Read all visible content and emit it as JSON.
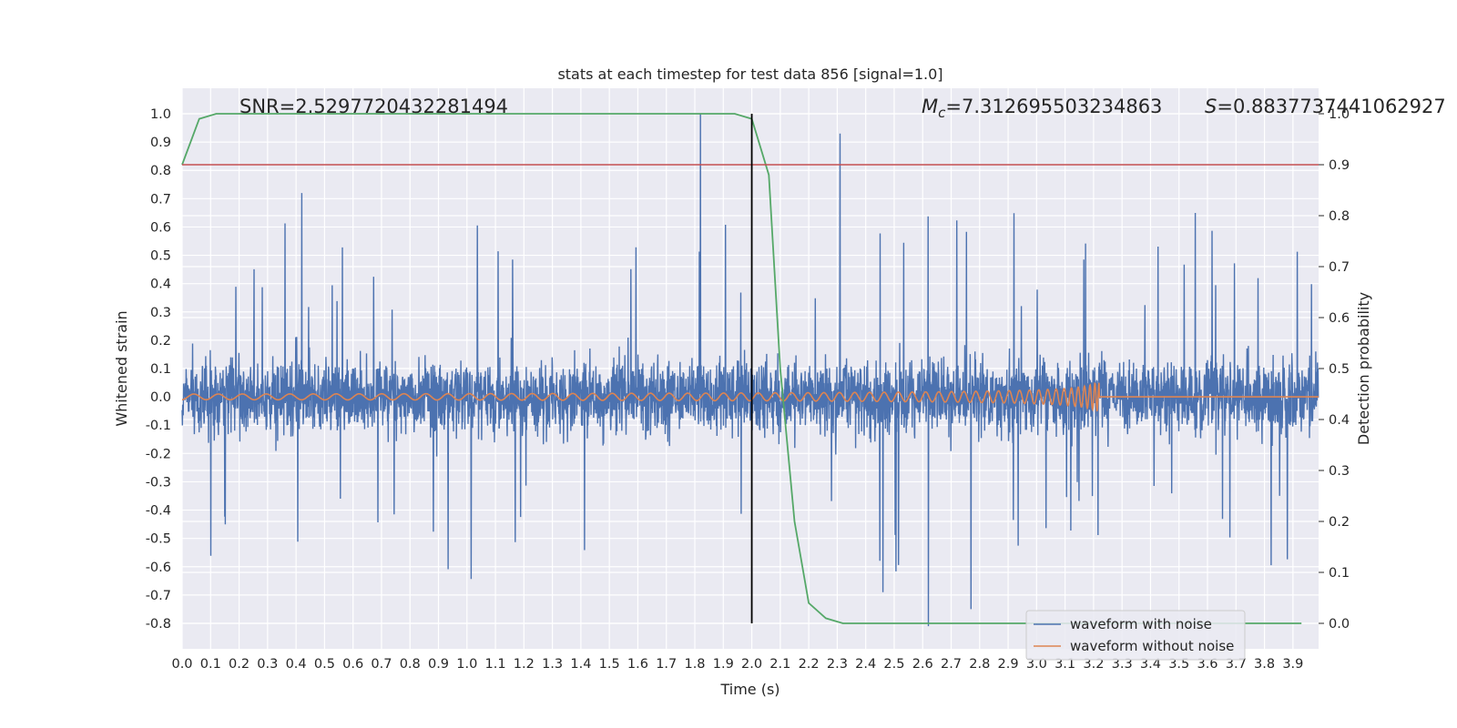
{
  "chart_data": {
    "type": "line",
    "title": "stats at each timestep for test data 856 [signal=1.0]",
    "xlabel": "Time (s)",
    "ylabel_left": "Whitened strain",
    "ylabel_right": "Detection probability",
    "xlim": [
      0.0,
      3.99
    ],
    "ylim_left": [
      -0.89,
      1.09
    ],
    "ylim_right": [
      -0.05,
      1.05
    ],
    "x_ticks": [
      "0.0",
      "0.1",
      "0.2",
      "0.3",
      "0.4",
      "0.5",
      "0.6",
      "0.7",
      "0.8",
      "0.9",
      "1.0",
      "1.1",
      "1.2",
      "1.3",
      "1.4",
      "1.5",
      "1.6",
      "1.7",
      "1.8",
      "1.9",
      "2.0",
      "2.1",
      "2.2",
      "2.3",
      "2.4",
      "2.5",
      "2.6",
      "2.7",
      "2.8",
      "2.9",
      "3.0",
      "3.1",
      "3.2",
      "3.3",
      "3.4",
      "3.5",
      "3.6",
      "3.7",
      "3.8",
      "3.9"
    ],
    "y_ticks_left": [
      "-0.8",
      "-0.7",
      "-0.6",
      "-0.5",
      "-0.4",
      "-0.3",
      "-0.2",
      "-0.1",
      "0.0",
      "0.1",
      "0.2",
      "0.3",
      "0.4",
      "0.5",
      "0.6",
      "0.7",
      "0.8",
      "0.9",
      "1.0"
    ],
    "y_ticks_right": [
      "0.0",
      "0.1",
      "0.2",
      "0.3",
      "0.4",
      "0.5",
      "0.6",
      "0.7",
      "0.8",
      "0.9",
      "1.0"
    ],
    "annotations": {
      "snr": "SNR=2.5297720432281494",
      "mc_symbol": "M",
      "mc_subscript": "c",
      "mc_value": "=7.312695503234863",
      "s_symbol": "S",
      "s_value": "=0.8837737441062927"
    },
    "threshold_line": {
      "value": 0.9,
      "axis": "right",
      "color": "#c44e52"
    },
    "merger_vline": {
      "x": 2.0,
      "color": "#000000"
    },
    "noisy_waveform": {
      "name": "waveform with noise",
      "color": "#4c72b0",
      "envelope_typical": 0.3,
      "max_spikes": [
        {
          "x": 1.82,
          "y": 1.0
        },
        {
          "x": 2.31,
          "y": 0.93
        },
        {
          "x": 0.42,
          "y": 0.72
        }
      ],
      "min_spikes": [
        {
          "x": 2.62,
          "y": -0.81
        },
        {
          "x": 2.77,
          "y": -0.75
        },
        {
          "x": 2.46,
          "y": -0.69
        }
      ]
    },
    "clean_waveform": {
      "name": "waveform without noise",
      "color": "#dd8452",
      "chirp_start": 0.0,
      "merger_time": 3.22,
      "peak_amplitude": 0.05,
      "initial_amplitude": 0.01
    },
    "detection_probability": {
      "name": "detection probability",
      "color": "#55a868",
      "x": [
        0.0,
        0.06,
        0.12,
        0.5,
        1.0,
        1.5,
        1.94,
        2.0,
        2.06,
        2.1,
        2.15,
        2.2,
        2.26,
        2.32,
        2.4,
        3.0,
        3.5,
        3.93
      ],
      "y": [
        0.9,
        0.99,
        1.0,
        1.0,
        1.0,
        1.0,
        1.0,
        0.99,
        0.88,
        0.5,
        0.2,
        0.04,
        0.01,
        0.0,
        0.0,
        0.0,
        0.0,
        0.0
      ]
    },
    "legend": {
      "position": "lower-right",
      "entries": [
        {
          "label": "waveform with noise",
          "color": "#4c72b0"
        },
        {
          "label": "waveform without noise",
          "color": "#dd8452"
        }
      ]
    }
  }
}
